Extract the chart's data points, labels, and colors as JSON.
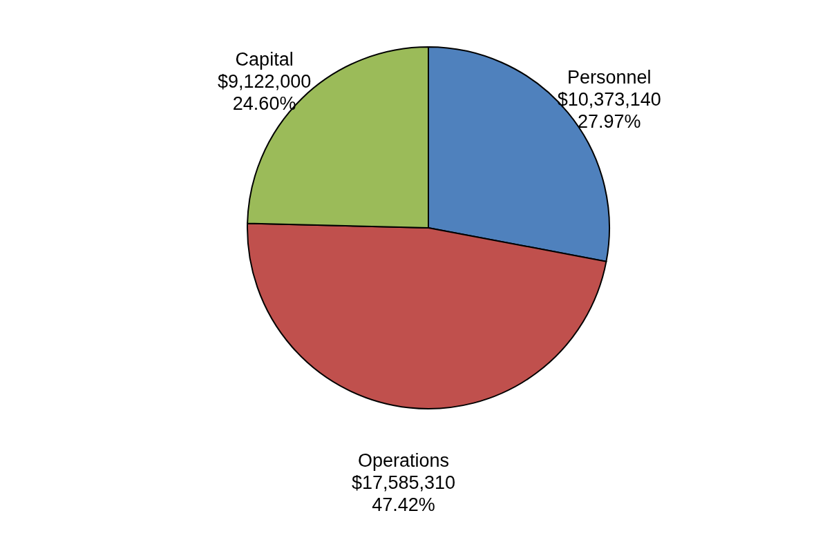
{
  "chart_data": {
    "type": "pie",
    "categories": [
      "Personnel",
      "Operations",
      "Capital"
    ],
    "values": [
      10373140,
      17585310,
      9122000
    ],
    "colors": [
      "#4f81bd",
      "#c0504d",
      "#9bbb59"
    ],
    "value_labels": [
      "$10,373,140\n27.97%",
      "$17,585,310\n47.42%",
      "$9,122,000\n24.60%"
    ]
  }
}
